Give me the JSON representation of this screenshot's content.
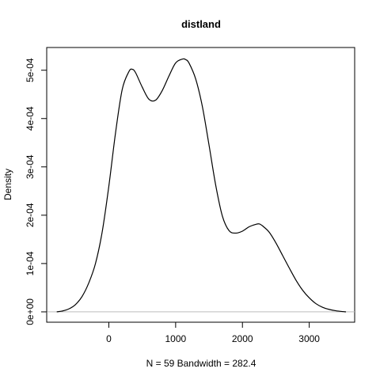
{
  "chart_data": {
    "type": "line",
    "title": "distland",
    "xlabel": "N = 59   Bandwidth = 282.4",
    "ylabel": "Density",
    "xlim": [
      -930,
      3680
    ],
    "ylim": [
      -2.14e-05,
      0.000547
    ],
    "x_ticks": [
      0,
      1000,
      2000,
      3000
    ],
    "x_tick_labels": [
      "0",
      "1000",
      "2000",
      "3000"
    ],
    "y_ticks": [
      0,
      0.0001,
      0.0002,
      0.0003,
      0.0004,
      0.0005
    ],
    "y_tick_labels": [
      "0e+00",
      "1e-04",
      "2e-04",
      "3e-04",
      "4e-04",
      "5e-04"
    ],
    "grid": false,
    "baseline": 0,
    "series": [
      {
        "color": "#000000",
        "x": [
          -780,
          -700,
          -600,
          -500,
          -400,
          -300,
          -200,
          -100,
          0,
          100,
          200,
          300,
          350,
          400,
          500,
          600,
          700,
          800,
          900,
          1000,
          1100,
          1150,
          1200,
          1300,
          1400,
          1500,
          1600,
          1700,
          1800,
          1900,
          2000,
          2100,
          2200,
          2250,
          2300,
          2400,
          2500,
          2600,
          2700,
          2800,
          2900,
          3000,
          3100,
          3200,
          3300,
          3400,
          3500,
          3550
        ],
        "y": [
          0.0,
          1.6e-06,
          6e-06,
          1.5e-05,
          3.2e-05,
          6e-05,
          0.0001,
          0.000165,
          0.00026,
          0.00037,
          0.00046,
          0.000497,
          0.000502,
          0.000495,
          0.000465,
          0.00044,
          0.000438,
          0.000458,
          0.000488,
          0.000515,
          0.000523,
          0.000522,
          0.000515,
          0.000482,
          0.000425,
          0.000345,
          0.000262,
          0.000198,
          0.000168,
          0.000163,
          0.000167,
          0.000176,
          0.000181,
          0.000182,
          0.000178,
          0.000165,
          0.000143,
          0.000117,
          9.1e-05,
          6.6e-05,
          4.5e-05,
          2.9e-05,
          1.7e-05,
          9.5e-06,
          5e-06,
          2.2e-06,
          6e-07,
          0.0
        ]
      }
    ]
  }
}
